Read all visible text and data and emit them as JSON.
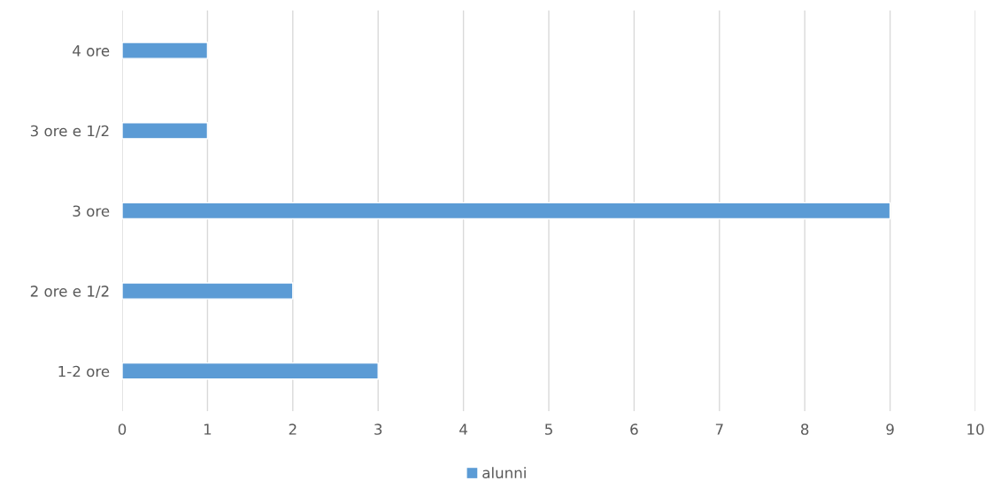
{
  "chart_data": {
    "type": "bar",
    "orientation": "horizontal",
    "categories": [
      "4 ore",
      "3 ore e 1/2",
      "3 ore",
      "2 ore e 1/2",
      "1-2 ore"
    ],
    "series": [
      {
        "name": "alunni",
        "color": "#5b9bd5",
        "values": [
          1,
          1,
          9,
          2,
          3
        ]
      }
    ],
    "xlim": [
      0,
      10
    ],
    "xticks": [
      0,
      1,
      2,
      3,
      4,
      5,
      6,
      7,
      8,
      9,
      10
    ],
    "grid": "x",
    "legend": "bottom"
  }
}
